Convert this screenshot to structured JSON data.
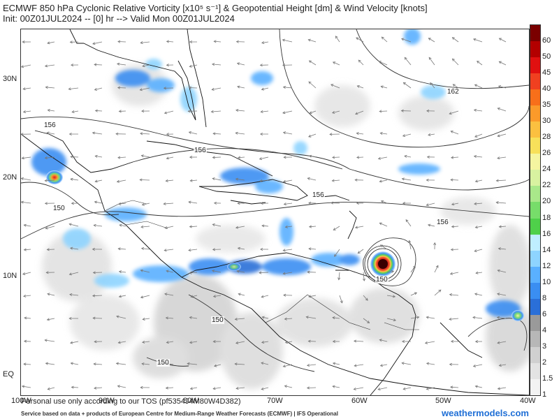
{
  "title": {
    "line1": "ECMWF 850 hPa Cyclonic Relative Vorticity [x10⁵ s⁻¹] & Geopotential Height [dm] & Wind Velocity [knots]",
    "line2": "Init: 00Z01JUL2024 -- [0] hr --> Valid Mon 00Z01JUL2024"
  },
  "axes": {
    "lat_labels": [
      "30N",
      "20N",
      "10N",
      "EQ"
    ],
    "lon_labels": [
      "100W",
      "90W",
      "80W",
      "70W",
      "60W",
      "50W",
      "40W"
    ]
  },
  "colorbar": {
    "labels": [
      "60",
      "50",
      "45",
      "40",
      "35",
      "30",
      "28",
      "26",
      "24",
      "22",
      "20",
      "18",
      "16",
      "14",
      "12",
      "10",
      "8",
      "6",
      "4",
      "3",
      "2",
      "1.5",
      "1"
    ],
    "colors": [
      "#7a0000",
      "#b30000",
      "#e01010",
      "#f04020",
      "#f86f1a",
      "#fb9a2a",
      "#fbc040",
      "#f7e05a",
      "#f5f5a0",
      "#d8f2a0",
      "#a9e88a",
      "#77dd6a",
      "#4fd04a",
      "#bfeeff",
      "#8ed4ff",
      "#5ab0ff",
      "#3a8ef2",
      "#2a6fd8",
      "#9a9a9a",
      "#b7b7b7",
      "#d0d0d0",
      "#e3e3e3",
      "#f3f3f3"
    ]
  },
  "height_contour_labels": [
    "162",
    "156",
    "156",
    "156",
    "156",
    "150",
    "150",
    "150",
    "150"
  ],
  "disclaimer": "Personal use only according to our TOS (pf5354J4M80W4D382)",
  "footer": "Service based on data + products of European Centre for Medium-Range Weather Forecasts (ECMWF) | IFS Operational",
  "brand": "weathermodels.com",
  "icons": [
    "wind-arrow-icon"
  ]
}
